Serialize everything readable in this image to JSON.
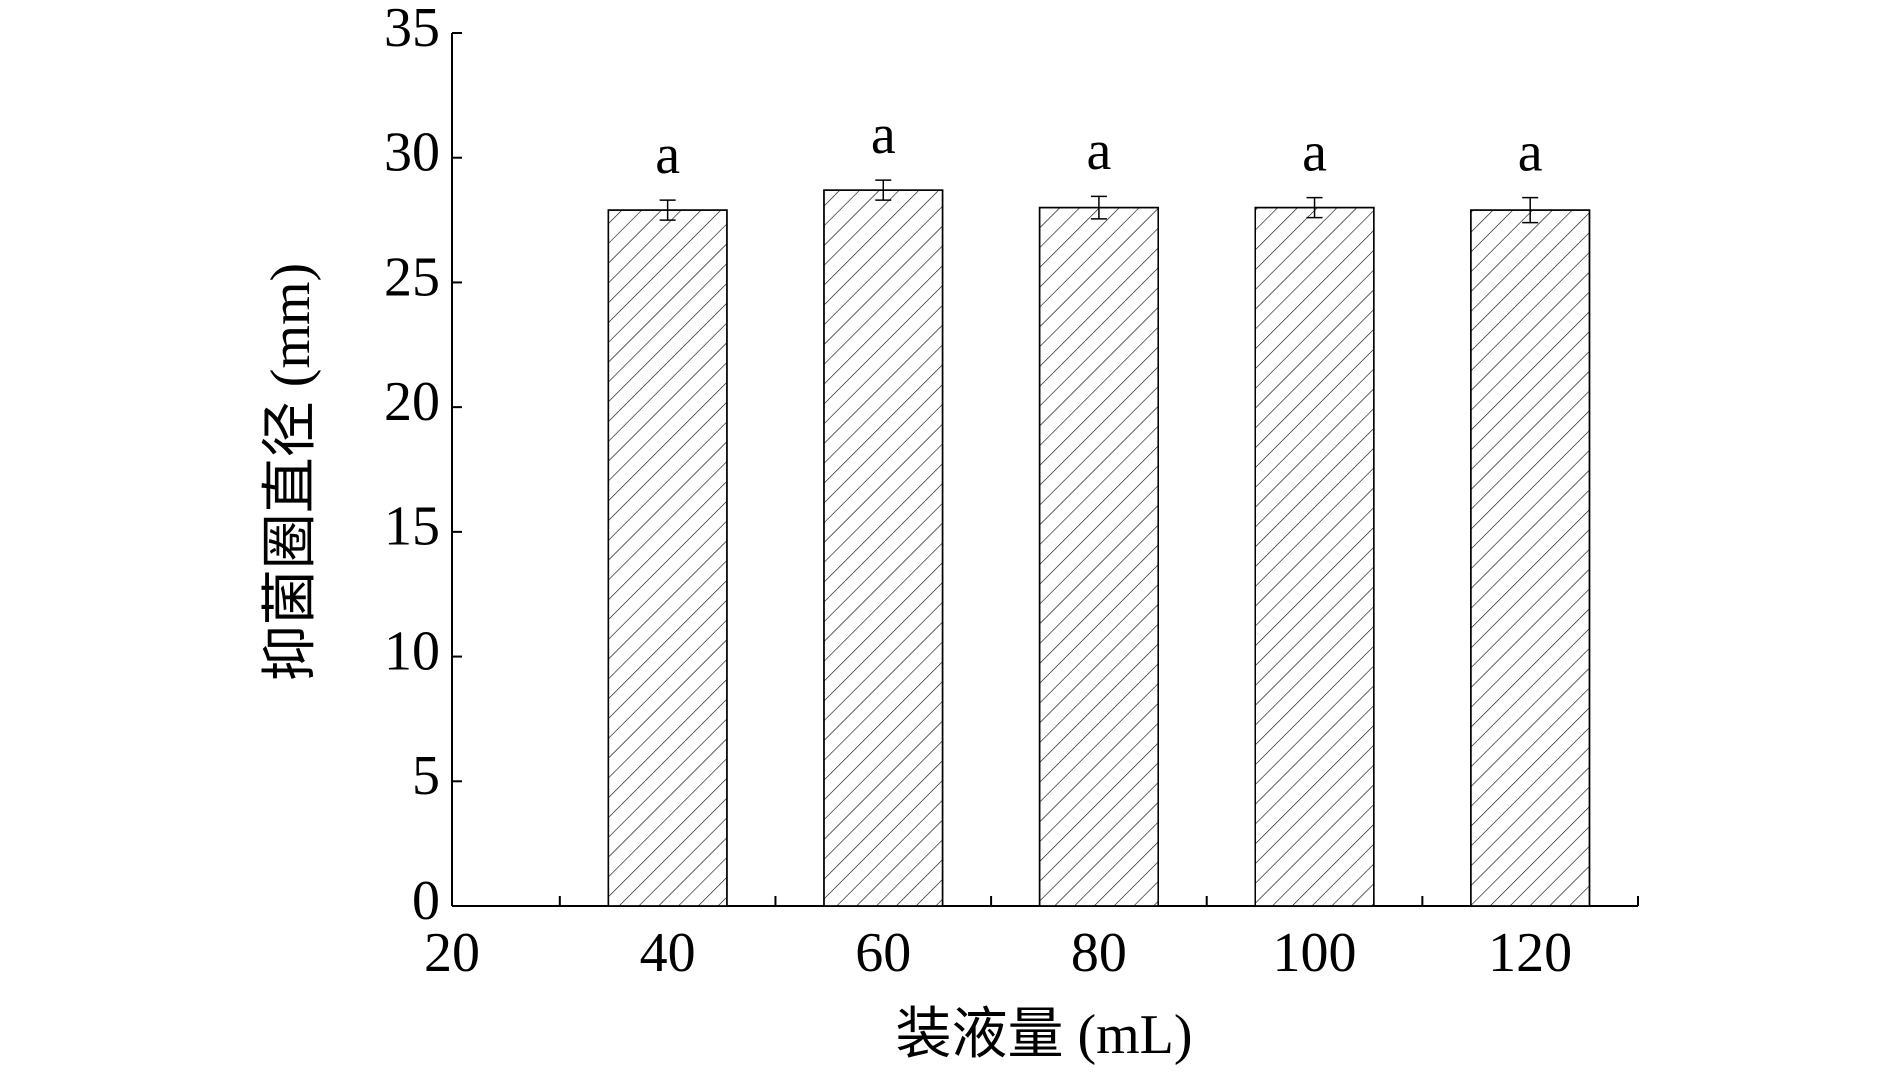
{
  "chart_data": {
    "type": "bar",
    "x_label": "装液量 (mL)",
    "y_label": "抑菌圈直径 (mm)",
    "x": [
      40,
      60,
      80,
      100,
      120
    ],
    "values": [
      27.9,
      28.7,
      28.0,
      28.0,
      27.9
    ],
    "errors": [
      0.4,
      0.4,
      0.45,
      0.4,
      0.5
    ],
    "annotations": [
      "a",
      "a",
      "a",
      "a",
      "a"
    ],
    "bar_width": 11,
    "xlim": [
      20,
      130
    ],
    "xticks": [
      20,
      40,
      60,
      80,
      100,
      120
    ],
    "xtick_marks": [
      30,
      50,
      70,
      90,
      110,
      130
    ],
    "ylim": [
      0,
      35
    ],
    "yticks": [
      0,
      5,
      10,
      15,
      20,
      25,
      30,
      35
    ],
    "color": "#ffffff",
    "hatch": "/",
    "grid": false
  }
}
